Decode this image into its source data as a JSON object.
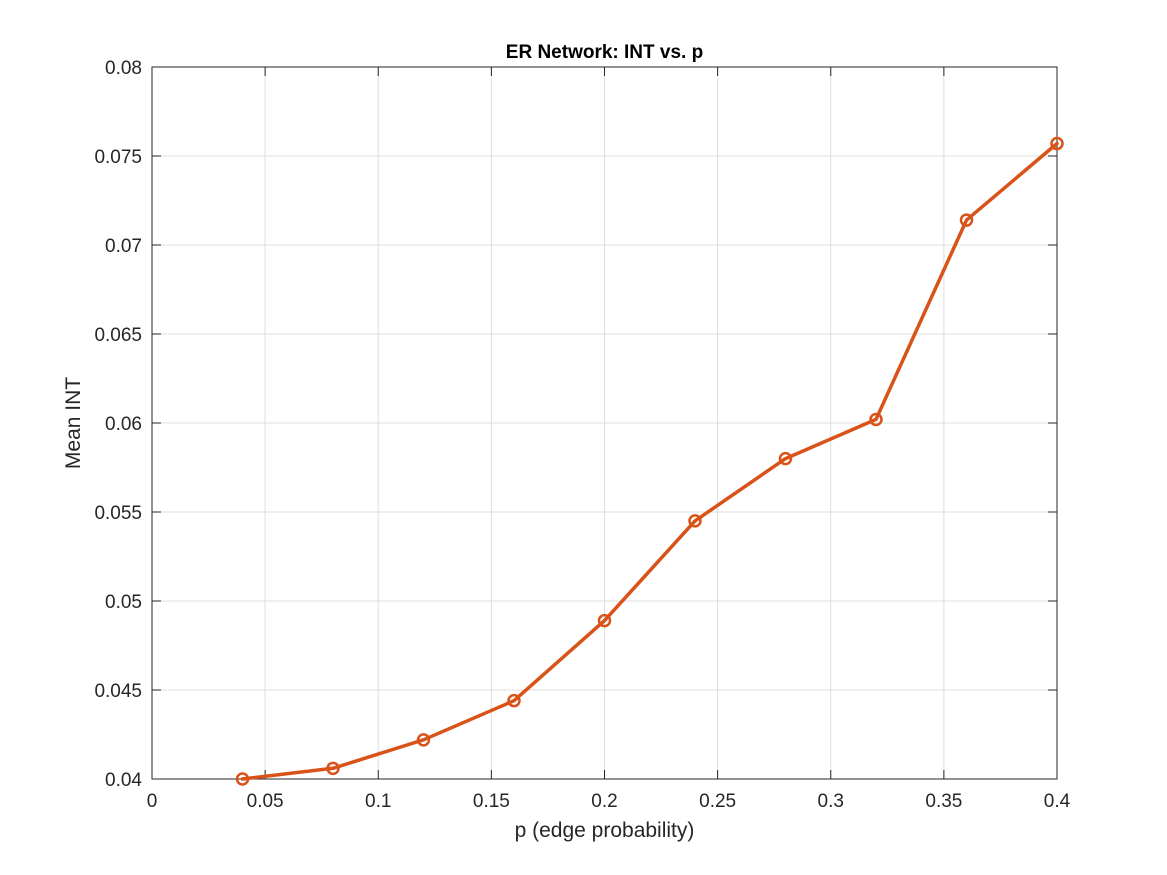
{
  "chart_data": {
    "type": "line",
    "title": "ER Network: INT vs. p",
    "xlabel": "p (edge probability)",
    "ylabel": "Mean INT",
    "xlim": [
      0,
      0.4
    ],
    "ylim": [
      0.04,
      0.08
    ],
    "xticks": [
      0,
      0.05,
      0.1,
      0.15,
      0.2,
      0.25,
      0.3,
      0.35,
      0.4
    ],
    "xtick_labels": [
      "0",
      "0.05",
      "0.1",
      "0.15",
      "0.2",
      "0.25",
      "0.3",
      "0.35",
      "0.4"
    ],
    "yticks": [
      0.04,
      0.045,
      0.05,
      0.055,
      0.06,
      0.065,
      0.07,
      0.075,
      0.08
    ],
    "ytick_labels": [
      "0.04",
      "0.045",
      "0.05",
      "0.055",
      "0.06",
      "0.065",
      "0.07",
      "0.075",
      "0.08"
    ],
    "grid": true,
    "series": [
      {
        "color": "#D95319",
        "marker": "circle",
        "x": [
          0.04,
          0.08,
          0.12,
          0.16,
          0.2,
          0.24,
          0.28,
          0.32,
          0.36,
          0.4
        ],
        "y": [
          0.04,
          0.0406,
          0.0422,
          0.0444,
          0.0489,
          0.0545,
          0.058,
          0.0602,
          0.0714,
          0.0757
        ]
      }
    ]
  }
}
